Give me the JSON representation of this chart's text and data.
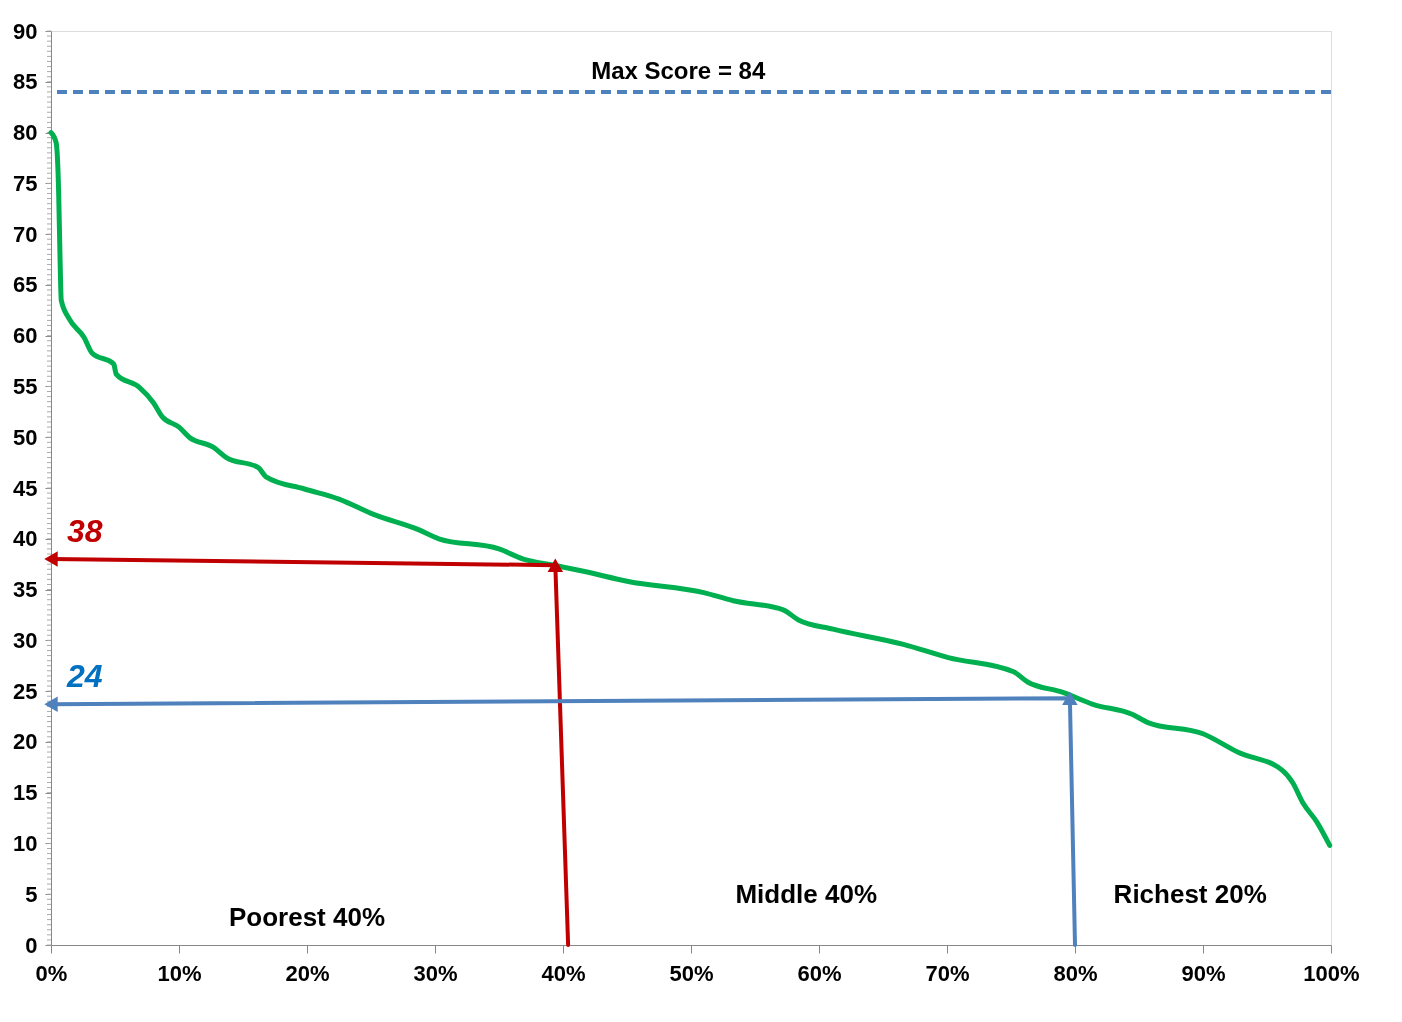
{
  "chart_data": {
    "type": "line",
    "x": [
      0,
      0.4,
      0.6,
      0.7,
      0.8,
      1.4,
      2.6,
      3.2,
      4.9,
      5.1,
      6.9,
      8,
      8.7,
      10,
      10.8,
      12.7,
      13.7,
      16.2,
      16.8,
      19.8,
      22.5,
      25.2,
      28.7,
      30.3,
      35,
      36.9,
      39.3,
      41.6,
      45.1,
      51,
      53.3,
      57.2,
      58.4,
      61.1,
      66.6,
      70.1,
      75.2,
      76.3,
      79,
      81.4,
      84.5,
      85.7,
      90,
      92.7,
      96.2,
      97,
      97.8,
      98.9,
      99.9
    ],
    "series": [
      {
        "color": "#00b050",
        "values": [
          80,
          79,
          74,
          68,
          63.5,
          61.7,
          59.8,
          58.3,
          57.2,
          56.2,
          54.9,
          53.4,
          52,
          51,
          50,
          49,
          48,
          47,
          46.1,
          44.9,
          43.9,
          42.4,
          40.9,
          40,
          39,
          38,
          37.4,
          36.8,
          35.8,
          34.7,
          33.9,
          33,
          32,
          31.1,
          29.6,
          28.3,
          26.9,
          25.9,
          24.9,
          23.7,
          22.7,
          21.9,
          20.8,
          19,
          17.2,
          16,
          14,
          12.1,
          9.8
        ]
      },
      {
        "type": "line",
        "marker": "triangle",
        "color": "#c00000",
        "x": [
          40.4,
          39.4,
          0
        ],
        "values": [
          0,
          37.4,
          38
        ]
      },
      {
        "type": "line",
        "marker": "triangle",
        "color": "#4f81bd",
        "x": [
          80,
          79.6,
          0
        ],
        "values": [
          0,
          24.3,
          23.7
        ]
      }
    ],
    "xlim": [
      0,
      100
    ],
    "xticks": [
      {
        "value": 0,
        "label": "0%"
      },
      {
        "value": 10,
        "label": "10%"
      },
      {
        "value": 20,
        "label": "20%"
      },
      {
        "value": 30,
        "label": "30%"
      },
      {
        "value": 40,
        "label": "40%"
      },
      {
        "value": 50,
        "label": "50%"
      },
      {
        "value": 60,
        "label": "60%"
      },
      {
        "value": 70,
        "label": "70%"
      },
      {
        "value": 80,
        "label": "80%"
      },
      {
        "value": 90,
        "label": "90%"
      },
      {
        "value": 100,
        "label": "100%"
      }
    ],
    "ylim": [
      0,
      90
    ],
    "yticks": [
      0,
      5,
      10,
      15,
      20,
      25,
      30,
      35,
      40,
      45,
      50,
      55,
      60,
      65,
      70,
      75,
      80,
      85,
      90
    ],
    "ref_lines": [
      {
        "axis": "y",
        "value": 84,
        "label": "Max Score = 84",
        "color": "#4f81bd",
        "line_style": "dashed"
      }
    ],
    "annotations": [
      "38",
      "24",
      "Poorest 40%",
      "Middle 40%",
      "Richest 20%"
    ],
    "grid": false,
    "marker": "none",
    "line_style": "solid"
  }
}
